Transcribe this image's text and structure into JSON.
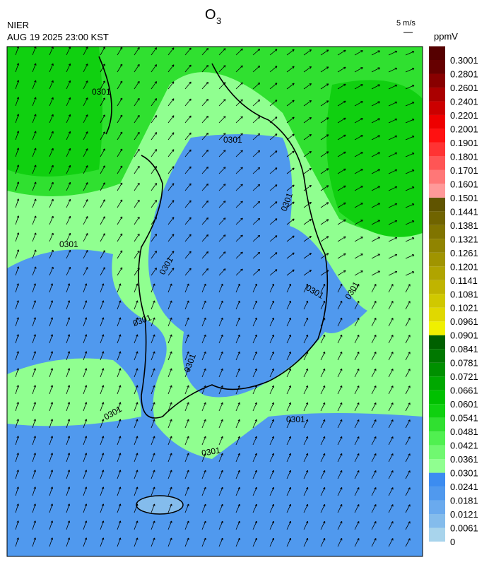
{
  "header": {
    "agency": "NIER",
    "datetime": "AUG 19 2025 23:00 KST",
    "title": "O",
    "title_sub": "3",
    "wind_scale": "5 m/s"
  },
  "colorbar": {
    "unit": "ppmV",
    "levels": [
      0,
      0.0061,
      0.0121,
      0.0181,
      0.0241,
      0.0301,
      0.0361,
      0.0421,
      0.0481,
      0.0541,
      0.0601,
      0.0661,
      0.0721,
      0.0781,
      0.0841,
      0.0901,
      0.0961,
      0.1021,
      0.1081,
      0.1141,
      0.1201,
      0.1261,
      0.1321,
      0.1381,
      0.1441,
      0.1501,
      0.1601,
      0.1701,
      0.1801,
      0.1901,
      0.2001,
      0.2201,
      0.2401,
      0.2601,
      0.2801,
      0.3001
    ],
    "colors": [
      "#a8d4ec",
      "#84bcec",
      "#6aaaee",
      "#5099ee",
      "#3c8cf0",
      "#90ff90",
      "#70f870",
      "#50f050",
      "#30e030",
      "#10d010",
      "#00c000",
      "#00a800",
      "#009000",
      "#007800",
      "#006000",
      "#f0f000",
      "#e0d800",
      "#d0c800",
      "#c0b400",
      "#b0a400",
      "#a09400",
      "#908400",
      "#807400",
      "#706400",
      "#605400",
      "#ff9999",
      "#ff7777",
      "#ff5555",
      "#ff3333",
      "#ff1111",
      "#ee0000",
      "#cc0000",
      "#aa0000",
      "#880000",
      "#660000",
      "#550000"
    ]
  },
  "contour_labels": [
    "0301",
    "0301",
    "0301",
    "0301",
    "0301",
    "0301",
    "0301",
    "0301",
    "0301",
    "0301",
    "0301",
    "0301"
  ]
}
